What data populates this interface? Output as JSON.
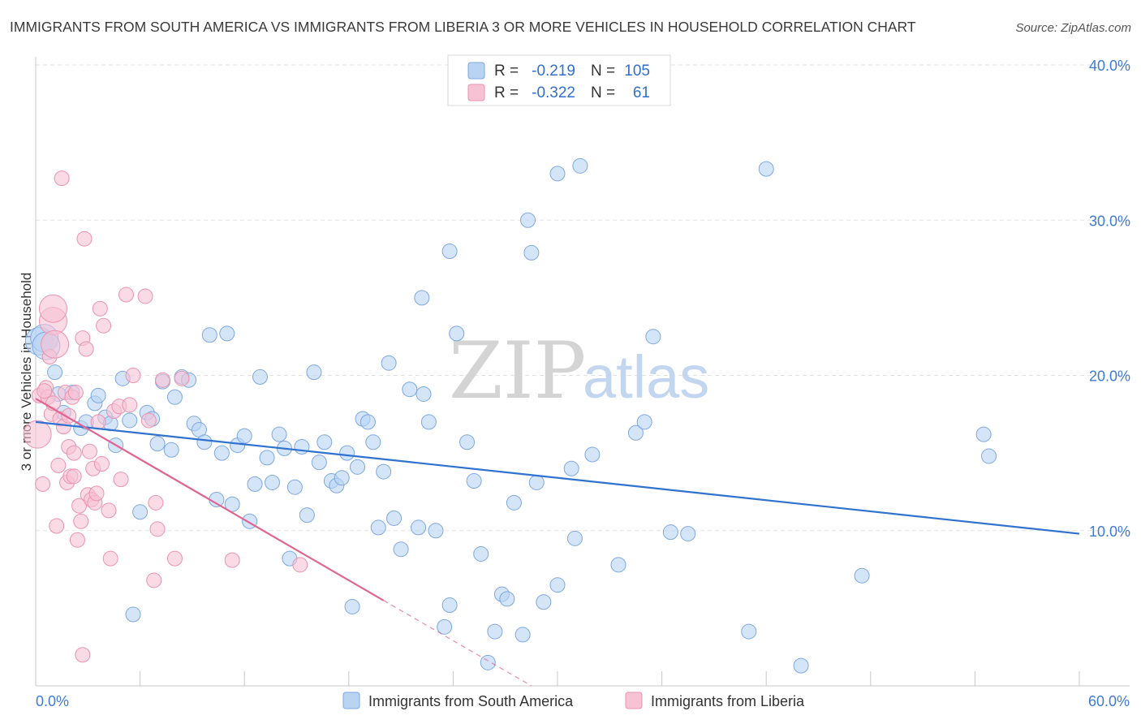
{
  "title": "IMMIGRANTS FROM SOUTH AMERICA VS IMMIGRANTS FROM LIBERIA 3 OR MORE VEHICLES IN HOUSEHOLD CORRELATION CHART",
  "source": "Source: ZipAtlas.com",
  "watermark": {
    "zip": "ZIP",
    "atlas": "atlas"
  },
  "colors": {
    "blue_fill": "#b9d3f3",
    "blue_stroke": "#7ea8e0",
    "blue_line": "#2f72d0",
    "pink_fill": "#f7c2d3",
    "pink_stroke": "#ea93b0",
    "pink_line": "#e06591",
    "tick_text": "#3f7bd6",
    "grid": "#e3e3e3"
  },
  "legend_top": {
    "rows": [
      {
        "r_label": "R =",
        "r_value": "-0.219",
        "n_label": "N =",
        "n_value": "105"
      },
      {
        "r_label": "R =",
        "r_value": "-0.322",
        "n_label": "N =",
        "n_value": "61"
      }
    ]
  },
  "legend_bottom": [
    "Immigrants from South America",
    "Immigrants from Liberia"
  ],
  "chart_data": {
    "type": "scatter",
    "title": "IMMIGRANTS FROM SOUTH AMERICA VS IMMIGRANTS FROM LIBERIA 3 OR MORE VEHICLES IN HOUSEHOLD CORRELATION CHART",
    "xlabel": "",
    "ylabel": "3 or more Vehicles in Household",
    "xlim": [
      0,
      60
    ],
    "ylim": [
      0,
      40
    ],
    "x_tick_labels": [
      "0.0%",
      "60.0%"
    ],
    "y_ticks": [
      10,
      20,
      30,
      40
    ],
    "y_tick_labels": [
      "10.0%",
      "20.0%",
      "30.0%",
      "40.0%"
    ],
    "grid": true,
    "series": [
      {
        "name": "Immigrants from South America",
        "r": -0.219,
        "n": 105,
        "trend": {
          "x": [
            0,
            60
          ],
          "y": [
            17.0,
            9.8
          ]
        },
        "points": [
          [
            0.2,
            22.2
          ],
          [
            0.5,
            22.4
          ],
          [
            0.6,
            21.9
          ],
          [
            1.1,
            20.2
          ],
          [
            1.3,
            18.8
          ],
          [
            1.6,
            17.6
          ],
          [
            2.1,
            18.9
          ],
          [
            2.6,
            16.6
          ],
          [
            2.9,
            17.0
          ],
          [
            3.4,
            18.2
          ],
          [
            3.6,
            18.7
          ],
          [
            4.0,
            17.3
          ],
          [
            4.3,
            16.9
          ],
          [
            4.6,
            15.5
          ],
          [
            5.0,
            19.8
          ],
          [
            5.4,
            17.1
          ],
          [
            5.6,
            4.6
          ],
          [
            6.0,
            11.2
          ],
          [
            6.4,
            17.6
          ],
          [
            6.7,
            17.2
          ],
          [
            7.0,
            15.6
          ],
          [
            7.3,
            19.6
          ],
          [
            7.8,
            15.2
          ],
          [
            8.0,
            18.6
          ],
          [
            8.4,
            19.9
          ],
          [
            8.8,
            19.7
          ],
          [
            9.1,
            16.9
          ],
          [
            9.4,
            16.5
          ],
          [
            9.7,
            15.7
          ],
          [
            10.0,
            22.6
          ],
          [
            10.4,
            12.0
          ],
          [
            10.7,
            15.0
          ],
          [
            11.0,
            22.7
          ],
          [
            11.3,
            11.7
          ],
          [
            11.6,
            15.5
          ],
          [
            12.0,
            16.1
          ],
          [
            12.3,
            10.6
          ],
          [
            12.6,
            13.0
          ],
          [
            12.9,
            19.9
          ],
          [
            13.3,
            14.7
          ],
          [
            13.6,
            13.1
          ],
          [
            14.0,
            16.2
          ],
          [
            14.3,
            15.3
          ],
          [
            14.6,
            8.2
          ],
          [
            14.9,
            12.8
          ],
          [
            15.3,
            15.4
          ],
          [
            15.6,
            11.0
          ],
          [
            16.0,
            20.2
          ],
          [
            16.3,
            14.4
          ],
          [
            16.6,
            15.7
          ],
          [
            17.0,
            13.2
          ],
          [
            17.3,
            12.9
          ],
          [
            17.6,
            13.4
          ],
          [
            17.9,
            15.0
          ],
          [
            18.2,
            5.1
          ],
          [
            18.5,
            14.1
          ],
          [
            18.8,
            17.2
          ],
          [
            19.1,
            17.0
          ],
          [
            19.4,
            15.7
          ],
          [
            19.7,
            10.2
          ],
          [
            20.0,
            13.8
          ],
          [
            20.3,
            20.8
          ],
          [
            20.6,
            10.8
          ],
          [
            21.0,
            8.8
          ],
          [
            21.5,
            19.1
          ],
          [
            22.0,
            10.2
          ],
          [
            22.3,
            18.8
          ],
          [
            22.6,
            17.0
          ],
          [
            23.0,
            10.0
          ],
          [
            23.5,
            3.8
          ],
          [
            23.8,
            5.2
          ],
          [
            24.2,
            22.7
          ],
          [
            24.8,
            15.7
          ],
          [
            25.2,
            13.2
          ],
          [
            25.6,
            8.5
          ],
          [
            26.0,
            1.5
          ],
          [
            26.4,
            3.5
          ],
          [
            26.8,
            5.9
          ],
          [
            27.1,
            5.6
          ],
          [
            27.5,
            11.8
          ],
          [
            28.0,
            3.3
          ],
          [
            28.5,
            27.9
          ],
          [
            28.8,
            13.1
          ],
          [
            30.0,
            6.5
          ],
          [
            29.2,
            5.4
          ],
          [
            31.0,
            9.5
          ],
          [
            32.0,
            14.9
          ],
          [
            33.5,
            7.8
          ],
          [
            34.5,
            16.3
          ],
          [
            35.0,
            17.0
          ],
          [
            35.5,
            22.5
          ],
          [
            36.5,
            9.9
          ],
          [
            37.5,
            9.8
          ],
          [
            30.8,
            14.0
          ],
          [
            28.3,
            30.0
          ],
          [
            30.0,
            33.0
          ],
          [
            31.3,
            33.5
          ],
          [
            22.2,
            25.0
          ],
          [
            23.8,
            28.0
          ],
          [
            41.0,
            3.5
          ],
          [
            44.0,
            1.3
          ],
          [
            42.0,
            33.3
          ],
          [
            47.5,
            7.1
          ],
          [
            54.5,
            16.2
          ],
          [
            54.8,
            14.8
          ]
        ]
      },
      {
        "name": "Immigrants from Liberia",
        "r": -0.322,
        "n": 61,
        "trend": {
          "x": [
            0,
            20
          ],
          "y": [
            18.5,
            5.5
          ],
          "dashed_extension": {
            "x": [
              20,
              28.5
            ],
            "y": [
              5.5,
              0
            ]
          }
        },
        "points": [
          [
            0.1,
            16.2
          ],
          [
            0.2,
            18.7
          ],
          [
            0.4,
            13.0
          ],
          [
            0.6,
            19.2
          ],
          [
            0.7,
            18.6
          ],
          [
            0.8,
            21.2
          ],
          [
            0.9,
            17.5
          ],
          [
            1.0,
            23.5
          ],
          [
            1.0,
            24.3
          ],
          [
            1.1,
            22.0
          ],
          [
            1.2,
            10.3
          ],
          [
            1.3,
            14.2
          ],
          [
            1.4,
            17.2
          ],
          [
            1.5,
            32.7
          ],
          [
            1.6,
            16.7
          ],
          [
            1.7,
            18.9
          ],
          [
            1.8,
            13.1
          ],
          [
            1.9,
            15.4
          ],
          [
            2.0,
            13.5
          ],
          [
            2.1,
            18.6
          ],
          [
            2.2,
            13.5
          ],
          [
            2.3,
            18.9
          ],
          [
            2.4,
            9.4
          ],
          [
            2.5,
            11.6
          ],
          [
            2.6,
            10.6
          ],
          [
            2.7,
            22.4
          ],
          [
            2.8,
            28.8
          ],
          [
            2.9,
            21.7
          ],
          [
            3.0,
            12.3
          ],
          [
            3.1,
            15.1
          ],
          [
            3.2,
            12.0
          ],
          [
            3.3,
            14.0
          ],
          [
            3.4,
            11.8
          ],
          [
            3.5,
            12.4
          ],
          [
            3.7,
            24.3
          ],
          [
            3.8,
            14.3
          ],
          [
            3.9,
            23.2
          ],
          [
            4.2,
            11.3
          ],
          [
            4.3,
            8.2
          ],
          [
            4.5,
            17.7
          ],
          [
            4.8,
            18.0
          ],
          [
            4.9,
            13.3
          ],
          [
            5.2,
            25.2
          ],
          [
            5.4,
            18.1
          ],
          [
            5.6,
            20.0
          ],
          [
            6.3,
            25.1
          ],
          [
            6.5,
            17.1
          ],
          [
            6.8,
            6.8
          ],
          [
            6.9,
            11.8
          ],
          [
            7.0,
            10.1
          ],
          [
            7.3,
            19.7
          ],
          [
            8.0,
            8.2
          ],
          [
            8.4,
            19.8
          ],
          [
            11.3,
            8.1
          ],
          [
            15.2,
            7.8
          ],
          [
            2.7,
            2.0
          ],
          [
            3.6,
            17.0
          ],
          [
            1.9,
            17.4
          ],
          [
            1.0,
            18.2
          ],
          [
            0.5,
            19.0
          ],
          [
            2.2,
            15.0
          ]
        ]
      }
    ]
  }
}
